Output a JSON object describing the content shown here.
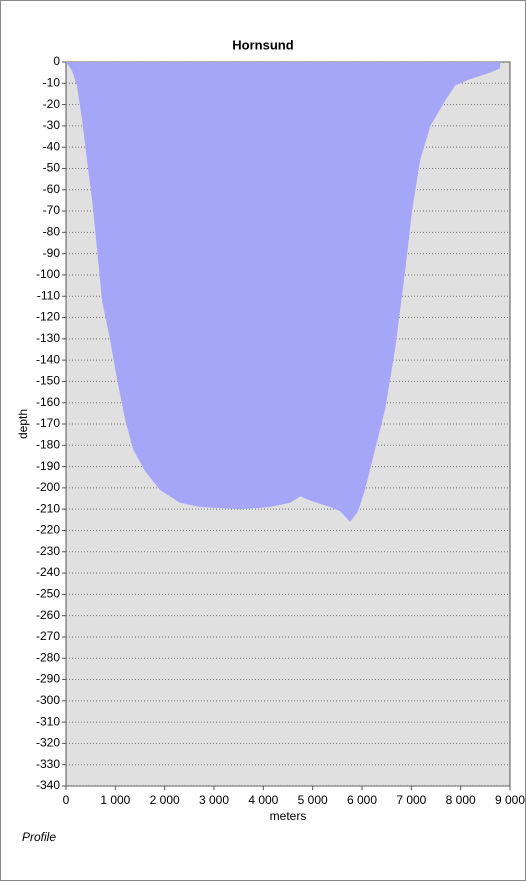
{
  "chart_data": {
    "type": "area",
    "title": "Hornsund",
    "xlabel": "meters",
    "ylabel": "depth",
    "footer": "Profile",
    "color": "#a6a6f8",
    "grid": true,
    "x": [
      0,
      120,
      220,
      325,
      425,
      530,
      630,
      730,
      890,
      1035,
      1200,
      1360,
      1600,
      1905,
      2310,
      2720,
      3530,
      4140,
      4545,
      4750,
      4950,
      5355,
      5560,
      5760,
      5920,
      6060,
      6265,
      6470,
      6670,
      6875,
      7020,
      7180,
      7385,
      7690,
      7890,
      8200,
      8600,
      8800
    ],
    "values": [
      0,
      -4,
      -11,
      -27,
      -46,
      -65,
      -88,
      -112,
      -130,
      -149,
      -168,
      -182,
      -192,
      -201,
      -207,
      -209,
      -210,
      -209,
      -207,
      -204,
      -206,
      -209,
      -211,
      -216,
      -211,
      -201,
      -182,
      -163,
      -135,
      -98,
      -69,
      -46,
      -30,
      -18,
      -11,
      -8,
      -5,
      -3
    ],
    "xlim": [
      0,
      9000
    ],
    "xticks": [
      0,
      {
        "value": 1000,
        "label": "1 000"
      },
      {
        "value": 2000,
        "label": "2 000"
      },
      {
        "value": 3000,
        "label": "3 000"
      },
      {
        "value": 4000,
        "label": "4 000"
      },
      {
        "value": 5000,
        "label": "5 000"
      },
      {
        "value": 6000,
        "label": "6 000"
      },
      {
        "value": 7000,
        "label": "7 000"
      },
      {
        "value": 8000,
        "label": "8 000"
      },
      {
        "value": 9000,
        "label": "9 000"
      }
    ],
    "ylim": [
      -340,
      0
    ],
    "yticks": [
      0,
      -10,
      -20,
      -30,
      -40,
      -50,
      -60,
      -70,
      -80,
      -90,
      -100,
      -110,
      -120,
      -130,
      -140,
      -150,
      -160,
      -170,
      -180,
      -190,
      -200,
      -210,
      -220,
      -230,
      -240,
      -250,
      -260,
      -270,
      -280,
      -290,
      -300,
      -310,
      -320,
      -330,
      -340
    ]
  }
}
